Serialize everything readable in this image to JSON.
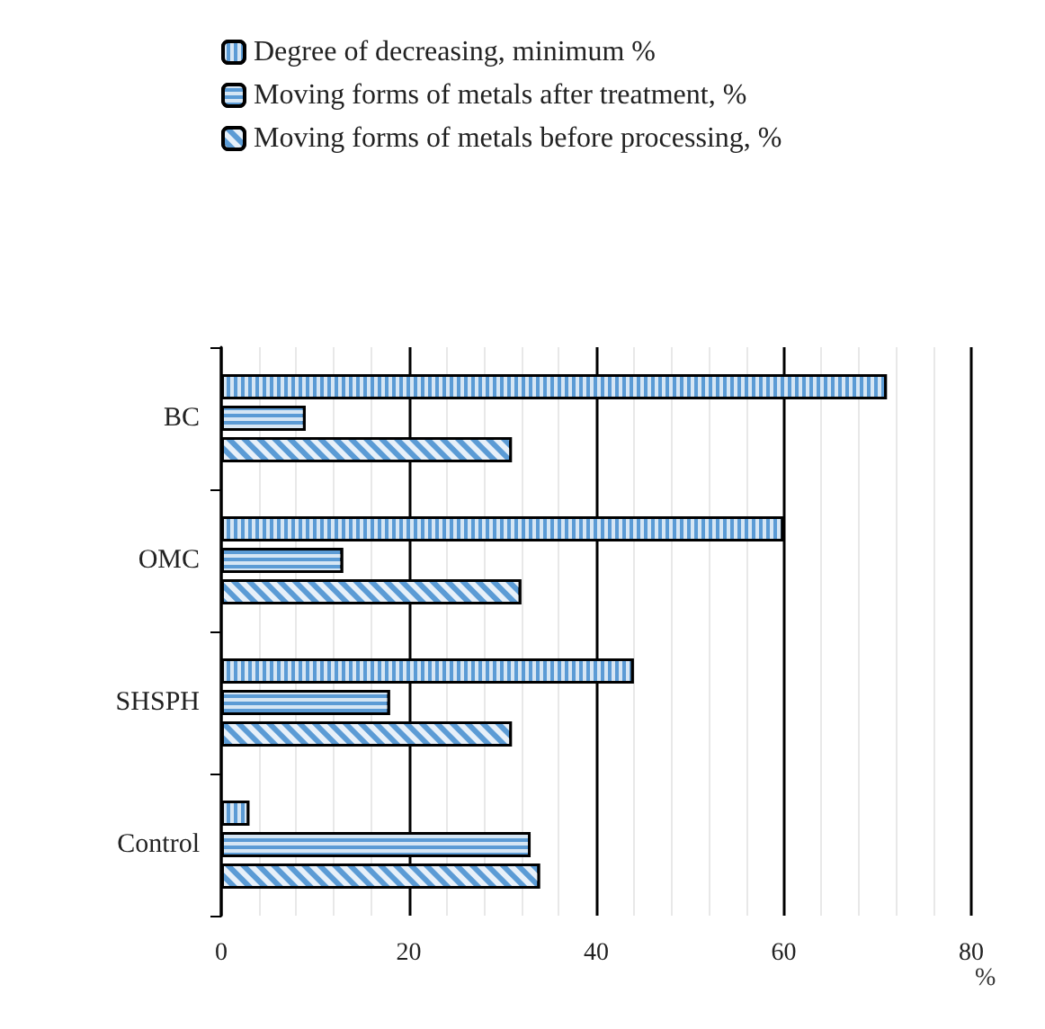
{
  "chart_data": {
    "type": "bar",
    "orientation": "horizontal",
    "xlabel": "%",
    "categories": [
      "BC",
      "OMC",
      "SHSPH",
      "Control"
    ],
    "series": [
      {
        "name": "Degree of decreasing, minimum %",
        "color": "#5b9bd5",
        "values": [
          71,
          60,
          44,
          3
        ]
      },
      {
        "name": "Moving forms of metals after treatment, %",
        "color": "#5b9bd5",
        "values": [
          9,
          13,
          18,
          33
        ]
      },
      {
        "name": "Moving forms of metals before processing, %",
        "color": "#5b9bd5",
        "values": [
          31,
          32,
          31,
          34
        ]
      }
    ],
    "xlim": [
      0,
      80
    ],
    "xticks": [
      0,
      20,
      40,
      60,
      80
    ],
    "grid": "x",
    "legend": "top"
  }
}
